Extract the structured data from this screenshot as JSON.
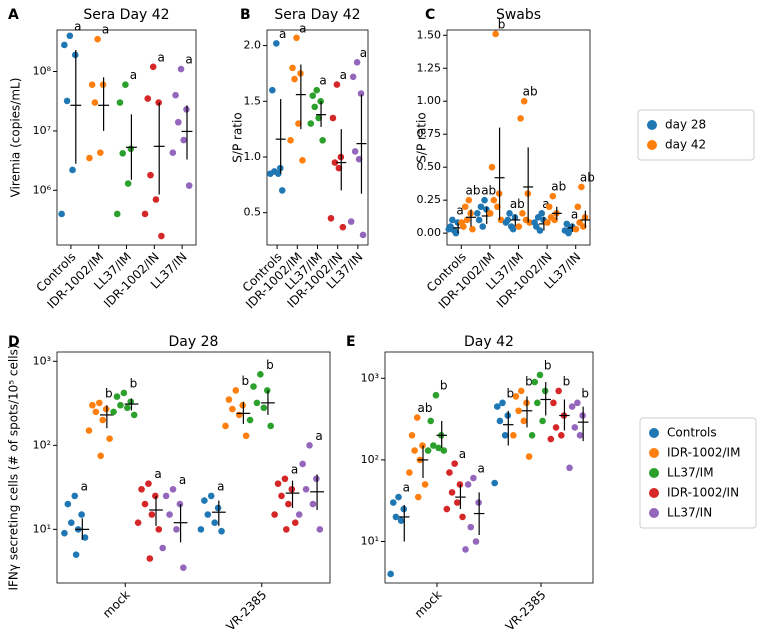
{
  "chart_data": [
    {
      "type": "strip",
      "panel": "A",
      "title": "Sera Day 42",
      "ylabel": "Viremia (copies/mL)",
      "log": true,
      "ylim": [
        120000,
        500000000
      ],
      "yticks": [
        {
          "value": 1000000,
          "label": "10⁶"
        },
        {
          "value": 10000000,
          "label": "10⁷"
        },
        {
          "value": 100000000,
          "label": "10⁸"
        }
      ],
      "categories": [
        "Controls",
        "IDR-1002/IM",
        "LL37/IM",
        "IDR-1002/IN",
        "LL37/IN"
      ],
      "colors": [
        "#1f77b4",
        "#ff7f0e",
        "#2ca02c",
        "#d62728",
        "#9467bd"
      ],
      "values": [
        [
          400000000,
          280000000,
          190000000,
          32000000,
          2200000,
          400000
        ],
        [
          350000000,
          60000000,
          60000000,
          30000000,
          4300000,
          3500000
        ],
        [
          60000000,
          30000000,
          5000000,
          4200000,
          1300000,
          400000
        ],
        [
          120000000,
          35000000,
          30000000,
          1800000,
          700000,
          400000,
          170000
        ],
        [
          110000000,
          40000000,
          23000000,
          14000000,
          7000000,
          4300000,
          1200000
        ]
      ],
      "mean": [
        27000000,
        27000000,
        5300000,
        5500000,
        9800000
      ],
      "lower": [
        2800000,
        10000000,
        1500000,
        850000,
        3300000
      ],
      "upper": [
        230000000,
        80000000,
        19000000,
        30000000,
        27000000
      ],
      "letters": [
        "a",
        "a",
        "a",
        "a",
        "a"
      ]
    },
    {
      "type": "strip",
      "panel": "B",
      "title": "Sera Day 42",
      "ylabel": "S/P ratio",
      "log": false,
      "ylim": [
        0.21,
        2.14
      ],
      "yticks": [
        0.5,
        {
          "value": 1,
          "label": "1.0"
        },
        1.5,
        {
          "value": 2,
          "label": "2.0"
        }
      ],
      "categories": [
        "Controls",
        "IDR-1002/IM",
        "LL37/IM",
        "IDR-1002/IN",
        "LL37/IN"
      ],
      "colors": [
        "#1f77b4",
        "#ff7f0e",
        "#2ca02c",
        "#d62728",
        "#9467bd"
      ],
      "values": [
        [
          2.02,
          1.6,
          0.9,
          0.87,
          0.85,
          0.85,
          0.7
        ],
        [
          2.07,
          1.8,
          1.75,
          1.7,
          1.3,
          1.15,
          0.97
        ],
        [
          1.6,
          1.55,
          1.5,
          1.45,
          1.35,
          1.3,
          1.15
        ],
        [
          1.65,
          1.35,
          1.0,
          0.95,
          0.9,
          0.45,
          0.37
        ],
        [
          1.85,
          1.72,
          1.57,
          1.05,
          0.98,
          0.42,
          0.3
        ]
      ],
      "mean": [
        1.16,
        1.56,
        1.38,
        0.95,
        1.12
      ],
      "lower": [
        0.85,
        1.25,
        1.27,
        0.7,
        0.67
      ],
      "upper": [
        1.52,
        1.83,
        1.5,
        1.25,
        1.56
      ],
      "letters": [
        "a",
        "a",
        "a",
        "a",
        "a"
      ]
    },
    {
      "type": "strip",
      "panel": "C",
      "title": "Swabs",
      "ylabel": "S/P ratio",
      "log": false,
      "ylim": [
        -0.09,
        1.54
      ],
      "yticks": [
        {
          "value": 0,
          "label": "0.00"
        },
        {
          "value": 0.25,
          "label": "0.25"
        },
        {
          "value": 0.5,
          "label": "0.50"
        },
        {
          "value": 0.75,
          "label": "0.75"
        },
        {
          "value": 1,
          "label": "1.00"
        },
        {
          "value": 1.25,
          "label": "1.25"
        },
        {
          "value": 1.5,
          "label": "1.50"
        }
      ],
      "categories": [
        "Controls",
        "IDR-1002/IM",
        "LL37/IM",
        "IDR-1002/IN",
        "LL37/IN"
      ],
      "series": [
        {
          "name": "day 28",
          "color": "#1f77b4",
          "values": [
            [
              0.02,
              0.05,
              0.08,
              0.1,
              0.0,
              0.03
            ],
            [
              0.05,
              0.1,
              0.18,
              0.2,
              0.25,
              0.15
            ],
            [
              0.05,
              0.1,
              0.12,
              0.15,
              0.03,
              0.08
            ],
            [
              0.02,
              0.05,
              0.1,
              0.12,
              0.15,
              0.08
            ],
            [
              0.0,
              0.02,
              0.05,
              0.07,
              0.03
            ]
          ],
          "mean": [
            0.04,
            0.13,
            0.1,
            0.07,
            0.04
          ],
          "lower": [
            0.0,
            0.07,
            0.05,
            0.02,
            0.01
          ],
          "upper": [
            0.08,
            0.2,
            0.14,
            0.12,
            0.07
          ],
          "letters": [
            "a",
            "ab",
            "ab",
            "a",
            "a"
          ]
        },
        {
          "name": "day 42",
          "color": "#ff7f0e",
          "values": [
            [
              0.1,
              0.05,
              0.15,
              0.2,
              0.25,
              0.08,
              0.03
            ],
            [
              1.51,
              0.5,
              0.3,
              0.25,
              0.2,
              0.15,
              0.1
            ],
            [
              1.0,
              0.87,
              0.3,
              0.15,
              0.1,
              0.05,
              0.08
            ],
            [
              0.28,
              0.2,
              0.15,
              0.12,
              0.1,
              0.08
            ],
            [
              0.35,
              0.2,
              0.12,
              0.08,
              0.05,
              0.03
            ]
          ],
          "mean": [
            0.12,
            0.42,
            0.35,
            0.15,
            0.1
          ],
          "lower": [
            0.05,
            0.1,
            0.08,
            0.1,
            0.04
          ],
          "upper": [
            0.18,
            0.8,
            0.65,
            0.2,
            0.17
          ],
          "letters": [
            "ab",
            "b",
            "ab",
            "ab",
            "ab"
          ]
        }
      ]
    },
    {
      "type": "strip",
      "panel": "D",
      "title": "Day 28",
      "ylabel": "IFNγ secreting cells (# of spots/10⁵ cells)",
      "log": true,
      "ylim": [
        2.3,
        1290
      ],
      "yticks": [
        {
          "value": 10,
          "label": "10¹"
        },
        {
          "value": 100,
          "label": "10²"
        },
        {
          "value": 1000,
          "label": "10³"
        }
      ],
      "categories": [
        "mock",
        "VR-2385"
      ],
      "series": [
        {
          "name": "Controls",
          "color": "#1f77b4",
          "values": [
            [
              25,
              20,
              15,
              12,
              10,
              9,
              8,
              5
            ],
            [
              25,
              22,
              18,
              15,
              12,
              10,
              9.5
            ]
          ],
          "mean": [
            10,
            16
          ],
          "lower": [
            7.5,
            11
          ],
          "upper": [
            13.5,
            22
          ],
          "letters": [
            "a",
            "a"
          ]
        },
        {
          "name": "IDR-1002/IM",
          "color": "#ff7f0e",
          "values": [
            [
              320,
              300,
              270,
              250,
              200,
              150,
              120,
              75
            ],
            [
              450,
              350,
              300,
              270,
              230,
              170,
              130
            ]
          ],
          "mean": [
            230,
            240
          ],
          "lower": [
            160,
            180
          ],
          "upper": [
            300,
            330
          ],
          "letters": [
            "b",
            "b"
          ]
        },
        {
          "name": "LL37/IM",
          "color": "#2ca02c",
          "values": [
            [
              420,
              380,
              330,
              300,
              280,
              250,
              230
            ],
            [
              700,
              500,
              450,
              320,
              280,
              200,
              170
            ]
          ],
          "mean": [
            310,
            320
          ],
          "lower": [
            260,
            230
          ],
          "upper": [
            360,
            450
          ],
          "letters": [
            "b",
            "b"
          ]
        },
        {
          "name": "IDR-1002/IN",
          "color": "#d62728",
          "values": [
            [
              35,
              30,
              25,
              20,
              15,
              12,
              10,
              4.5
            ],
            [
              40,
              35,
              30,
              25,
              20,
              15,
              12,
              10
            ]
          ],
          "mean": [
            17,
            27
          ],
          "lower": [
            11,
            18
          ],
          "upper": [
            25,
            38
          ],
          "letters": [
            "a",
            "a"
          ]
        },
        {
          "name": "LL37/IN",
          "color": "#9467bd",
          "values": [
            [
              30,
              25,
              20,
              15,
              10,
              6,
              3.5
            ],
            [
              100,
              60,
              40,
              30,
              20,
              15,
              10
            ]
          ],
          "mean": [
            12,
            28
          ],
          "lower": [
            7,
            17
          ],
          "upper": [
            20,
            45
          ],
          "letters": [
            "a",
            "a"
          ]
        }
      ]
    },
    {
      "type": "strip",
      "panel": "E",
      "title": "Day 42",
      "log": true,
      "ylim": [
        3.1,
        2100
      ],
      "yticks": [
        {
          "value": 10,
          "label": "10¹"
        },
        {
          "value": 100,
          "label": "10²"
        },
        {
          "value": 1000,
          "label": "10³"
        }
      ],
      "categories": [
        "mock",
        "VR-2385"
      ],
      "series": [
        {
          "color": "#1f77b4",
          "values": [
            [
              35,
              30,
              25,
              20,
              18,
              4
            ],
            [
              500,
              450,
              350,
              300,
              200,
              52
            ]
          ],
          "mean": [
            20,
            270
          ],
          "lower": [
            10,
            150
          ],
          "upper": [
            28,
            400
          ],
          "letters": [
            "a",
            "b"
          ]
        },
        {
          "color": "#ff7f0e",
          "values": [
            [
              330,
              200,
              150,
              130,
              100,
              70,
              50,
              35
            ],
            [
              700,
              600,
              500,
              400,
              300,
              200,
              110
            ]
          ],
          "mean": [
            100,
            400
          ],
          "lower": [
            60,
            250
          ],
          "upper": [
            150,
            600
          ],
          "letters": [
            "ab",
            "b"
          ]
        },
        {
          "color": "#2ca02c",
          "values": [
            [
              620,
              300,
              200,
              150,
              140,
              130,
              130
            ],
            [
              1100,
              900,
              700,
              500,
              300,
              200
            ]
          ],
          "mean": [
            200,
            550
          ],
          "lower": [
            140,
            350
          ],
          "upper": [
            300,
            900
          ],
          "letters": [
            "b",
            "b"
          ]
        },
        {
          "color": "#d62728",
          "values": [
            [
              90,
              70,
              50,
              40,
              30,
              25,
              20
            ],
            [
              700,
              500,
              350,
              250,
              200,
              180
            ]
          ],
          "mean": [
            35,
            350
          ],
          "lower": [
            25,
            230
          ],
          "upper": [
            50,
            550
          ],
          "letters": [
            "a",
            "b"
          ]
        },
        {
          "color": "#9467bd",
          "values": [
            [
              60,
              50,
              30,
              15,
              10,
              8
            ],
            [
              500,
              450,
              350,
              250,
              200,
              80
            ]
          ],
          "mean": [
            22,
            290
          ],
          "lower": [
            12,
            170
          ],
          "upper": [
            40,
            450
          ],
          "letters": [
            "a",
            "b"
          ]
        }
      ]
    }
  ]
}
